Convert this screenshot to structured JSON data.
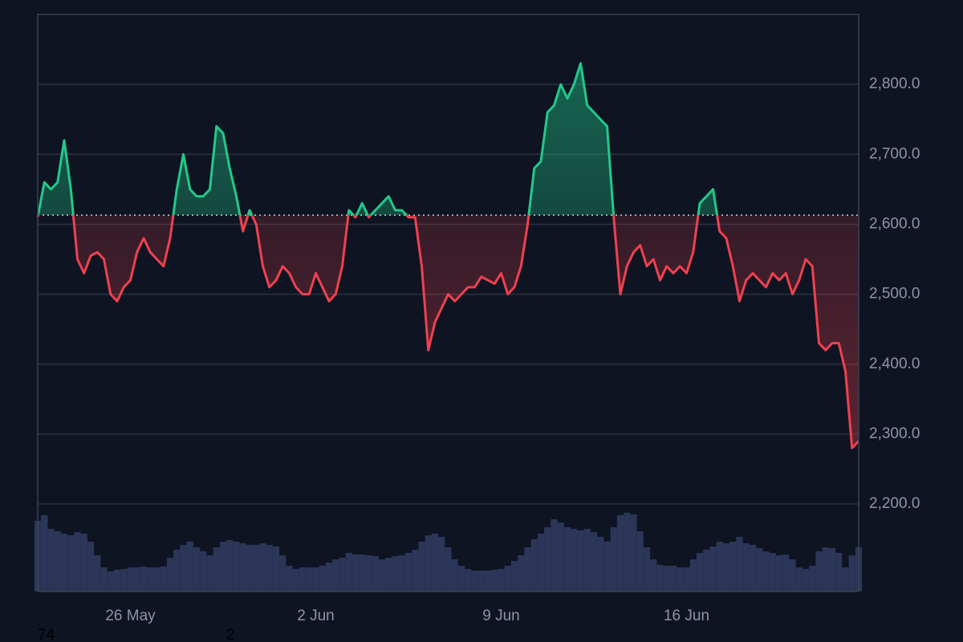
{
  "chart_data": {
    "type": "baseline",
    "baseline": 2613,
    "up_color": "#22c98a",
    "down_color": "#f0404f",
    "ylim": [
      2075,
      2900
    ],
    "yticks": [
      {
        "value": 2200,
        "label": "2,200.0"
      },
      {
        "value": 2300,
        "label": "2,300.0"
      },
      {
        "value": 2400,
        "label": "2,400.0"
      },
      {
        "value": 2500,
        "label": "2,500.0"
      },
      {
        "value": 2600,
        "label": "2,600.0"
      },
      {
        "value": 2700,
        "label": "2,700.0"
      },
      {
        "value": 2800,
        "label": "2,800.0"
      }
    ],
    "grid": true,
    "categories": [
      null,
      null,
      null,
      null,
      null,
      null,
      null,
      null,
      null,
      null,
      null,
      null,
      null,
      null,
      "26 May",
      null,
      null,
      null,
      null,
      null,
      null,
      null,
      null,
      null,
      null,
      null,
      null,
      null,
      null,
      null,
      null,
      null,
      null,
      null,
      null,
      null,
      null,
      null,
      null,
      null,
      null,
      null,
      "2 Jun",
      null,
      null,
      null,
      null,
      null,
      null,
      null,
      null,
      null,
      null,
      null,
      null,
      null,
      null,
      null,
      null,
      null,
      null,
      null,
      null,
      null,
      null,
      null,
      null,
      null,
      null,
      null,
      "9 Jun",
      null,
      null,
      null,
      null,
      null,
      null,
      null,
      null,
      null,
      null,
      null,
      null,
      null,
      null,
      null,
      null,
      null,
      null,
      null,
      null,
      null,
      null,
      null,
      null,
      null,
      null,
      null,
      "16 Jun",
      null,
      null,
      null,
      null,
      null,
      null,
      null,
      null,
      null,
      null,
      null,
      null,
      null,
      null,
      null,
      null,
      null,
      null,
      null,
      null,
      null,
      null,
      null,
      null,
      null,
      null
    ],
    "values": [
      2610,
      2660,
      2650,
      2660,
      2720,
      2650,
      2550,
      2530,
      2555,
      2560,
      2550,
      2500,
      2490,
      2510,
      2520,
      2560,
      2580,
      2560,
      2550,
      2540,
      2580,
      2650,
      2700,
      2650,
      2640,
      2640,
      2650,
      2740,
      2730,
      2680,
      2640,
      2590,
      2620,
      2600,
      2540,
      2510,
      2520,
      2540,
      2530,
      2510,
      2500,
      2500,
      2530,
      2510,
      2490,
      2500,
      2540,
      2620,
      2610,
      2630,
      2610,
      2620,
      2630,
      2640,
      2620,
      2620,
      2610,
      2610,
      2540,
      2420,
      2460,
      2480,
      2500,
      2490,
      2500,
      2510,
      2510,
      2525,
      2520,
      2515,
      2530,
      2500,
      2510,
      2540,
      2600,
      2680,
      2690,
      2760,
      2770,
      2800,
      2780,
      2800,
      2830,
      2770,
      2760,
      2750,
      2740,
      2610,
      2500,
      2540,
      2560,
      2570,
      2540,
      2550,
      2520,
      2540,
      2530,
      2540,
      2530,
      2560,
      2630,
      2640,
      2650,
      2590,
      2580,
      2540,
      2490,
      2520,
      2530,
      2520,
      2510,
      2530,
      2520,
      2530,
      2500,
      2520,
      2550,
      2540,
      2430,
      2420,
      2430,
      2430,
      2390,
      2280,
      2290
    ],
    "volume": {
      "color": "#2b3658",
      "lim": [
        0,
        100
      ],
      "values": [
        88,
        95,
        78,
        75,
        72,
        70,
        74,
        72,
        62,
        45,
        30,
        25,
        27,
        28,
        30,
        30,
        31,
        30,
        30,
        31,
        42,
        52,
        58,
        62,
        55,
        50,
        45,
        55,
        62,
        64,
        62,
        60,
        58,
        58,
        60,
        58,
        56,
        45,
        32,
        28,
        30,
        30,
        30,
        32,
        36,
        40,
        42,
        48,
        46,
        46,
        45,
        44,
        40,
        42,
        44,
        45,
        48,
        52,
        62,
        70,
        72,
        68,
        55,
        40,
        32,
        28,
        26,
        26,
        26,
        27,
        28,
        32,
        38,
        45,
        55,
        65,
        72,
        80,
        90,
        86,
        80,
        78,
        76,
        78,
        74,
        68,
        62,
        80,
        95,
        98,
        96,
        75,
        55,
        40,
        33,
        32,
        32,
        30,
        30,
        40,
        48,
        52,
        56,
        62,
        60,
        62,
        68,
        60,
        58,
        54,
        50,
        48,
        45,
        46,
        40,
        30,
        28,
        32,
        50,
        55,
        54,
        48,
        30,
        45,
        55
      ]
    }
  },
  "footer": [
    "74",
    "2"
  ]
}
